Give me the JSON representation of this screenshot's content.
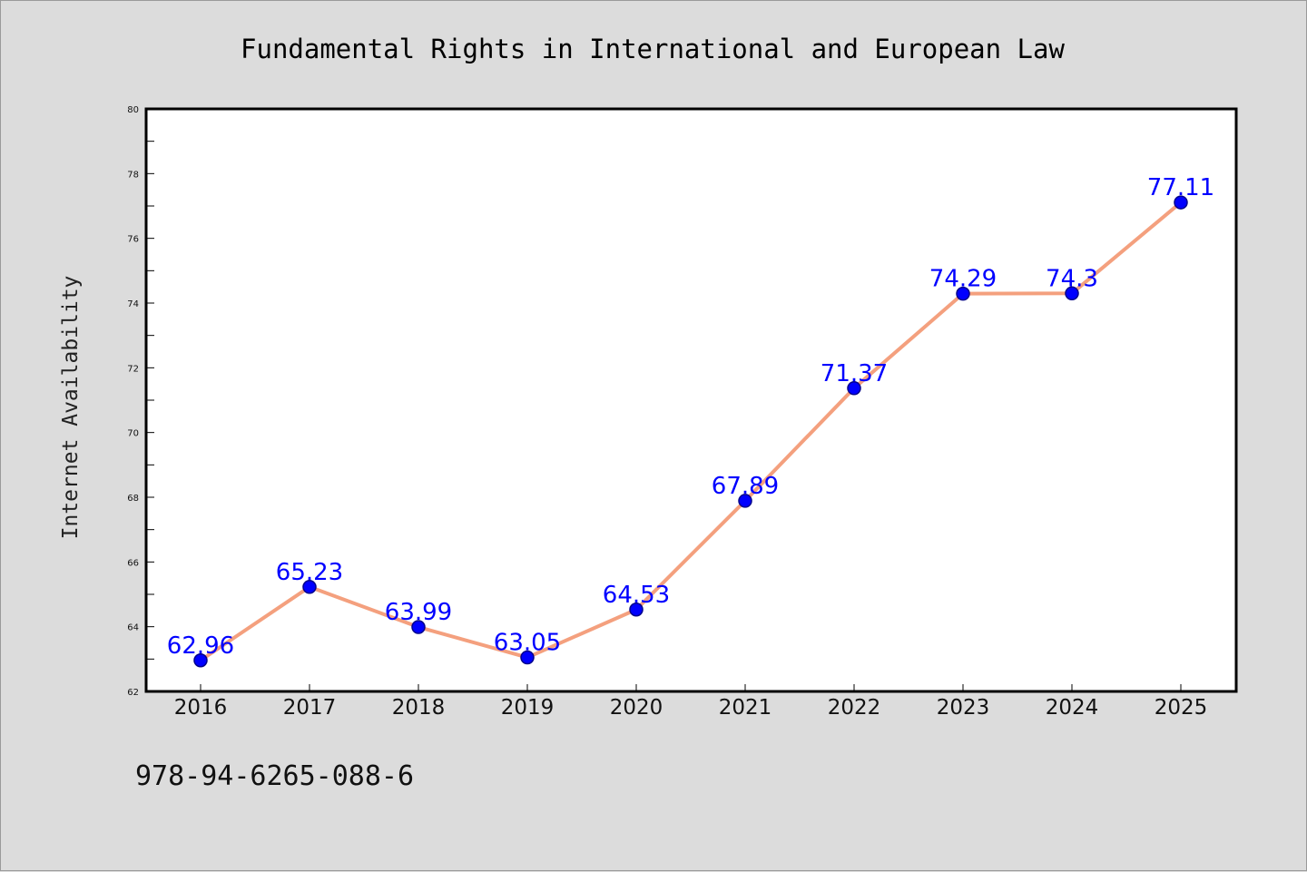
{
  "colors": {
    "background": "#dcdcdc",
    "plot_background": "#ffffff",
    "line": "#f4a07e",
    "marker": "#0000ff",
    "marker_edge": "#00008b",
    "data_label": "#0000ff",
    "axis": "#000000"
  },
  "footnote": "978-94-6265-088-6",
  "chart_data": {
    "type": "line",
    "title": "Fundamental Rights in International and European Law",
    "xlabel": "",
    "ylabel": "Internet Availability",
    "categories": [
      "2016",
      "2017",
      "2018",
      "2019",
      "2020",
      "2021",
      "2022",
      "2023",
      "2024",
      "2025"
    ],
    "series": [
      {
        "values": [
          62.96,
          65.23,
          63.99,
          63.05,
          64.53,
          67.89,
          71.37,
          74.29,
          74.3,
          77.11
        ],
        "labels": [
          "62.96",
          "65.23",
          "63.99",
          "63.05",
          "64.53",
          "67.89",
          "71.37",
          "74.29",
          "74.3",
          "77.11"
        ]
      }
    ],
    "ylim": [
      62,
      80
    ],
    "yticks": [
      62,
      64,
      66,
      68,
      70,
      72,
      74,
      76,
      78,
      80
    ],
    "grid": false,
    "legend": "none"
  }
}
